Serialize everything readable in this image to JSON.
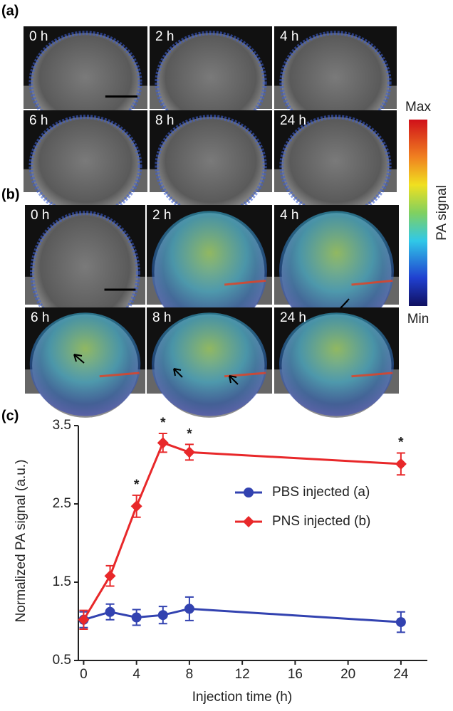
{
  "panels": {
    "a": {
      "label": "(a)",
      "frames": [
        "0 h",
        "2 h",
        "4 h",
        "6 h",
        "8 h",
        "24 h"
      ]
    },
    "b": {
      "label": "(b)",
      "frames": [
        "0 h",
        "2 h",
        "4 h",
        "6 h",
        "8 h",
        "24 h"
      ]
    }
  },
  "colorbar": {
    "title": "PA signal",
    "max_label": "Max",
    "min_label": "Min"
  },
  "chart_data": {
    "type": "line",
    "panel_label": "(c)",
    "x_label": "Injection time (h)",
    "y_label": "Normalized PA signal (a.u.)",
    "x": [
      0,
      2,
      4,
      6,
      8,
      24
    ],
    "series": [
      {
        "name": "PBS injected (a)",
        "color": "#3242b0",
        "marker": "circle",
        "values": [
          1.02,
          1.12,
          1.05,
          1.08,
          1.16,
          0.99
        ],
        "errors": [
          0.1,
          0.1,
          0.1,
          0.11,
          0.15,
          0.13
        ]
      },
      {
        "name": "PNS injected (b)",
        "color": "#e8282a",
        "marker": "diamond",
        "values": [
          1.02,
          1.58,
          2.47,
          3.28,
          3.16,
          3.01
        ],
        "errors": [
          0.12,
          0.13,
          0.14,
          0.12,
          0.1,
          0.14
        ]
      }
    ],
    "annotations": [
      {
        "x": 4,
        "text": "*"
      },
      {
        "x": 6,
        "text": "*"
      },
      {
        "x": 8,
        "text": "*"
      },
      {
        "x": 24,
        "text": "*"
      }
    ],
    "xlim": [
      -0.4,
      26
    ],
    "ylim": [
      0.5,
      3.5
    ],
    "xticks": [
      0,
      4,
      8,
      12,
      16,
      20,
      24
    ],
    "yticks": [
      0.5,
      1.5,
      2.5,
      3.5
    ],
    "legend": "center right"
  }
}
